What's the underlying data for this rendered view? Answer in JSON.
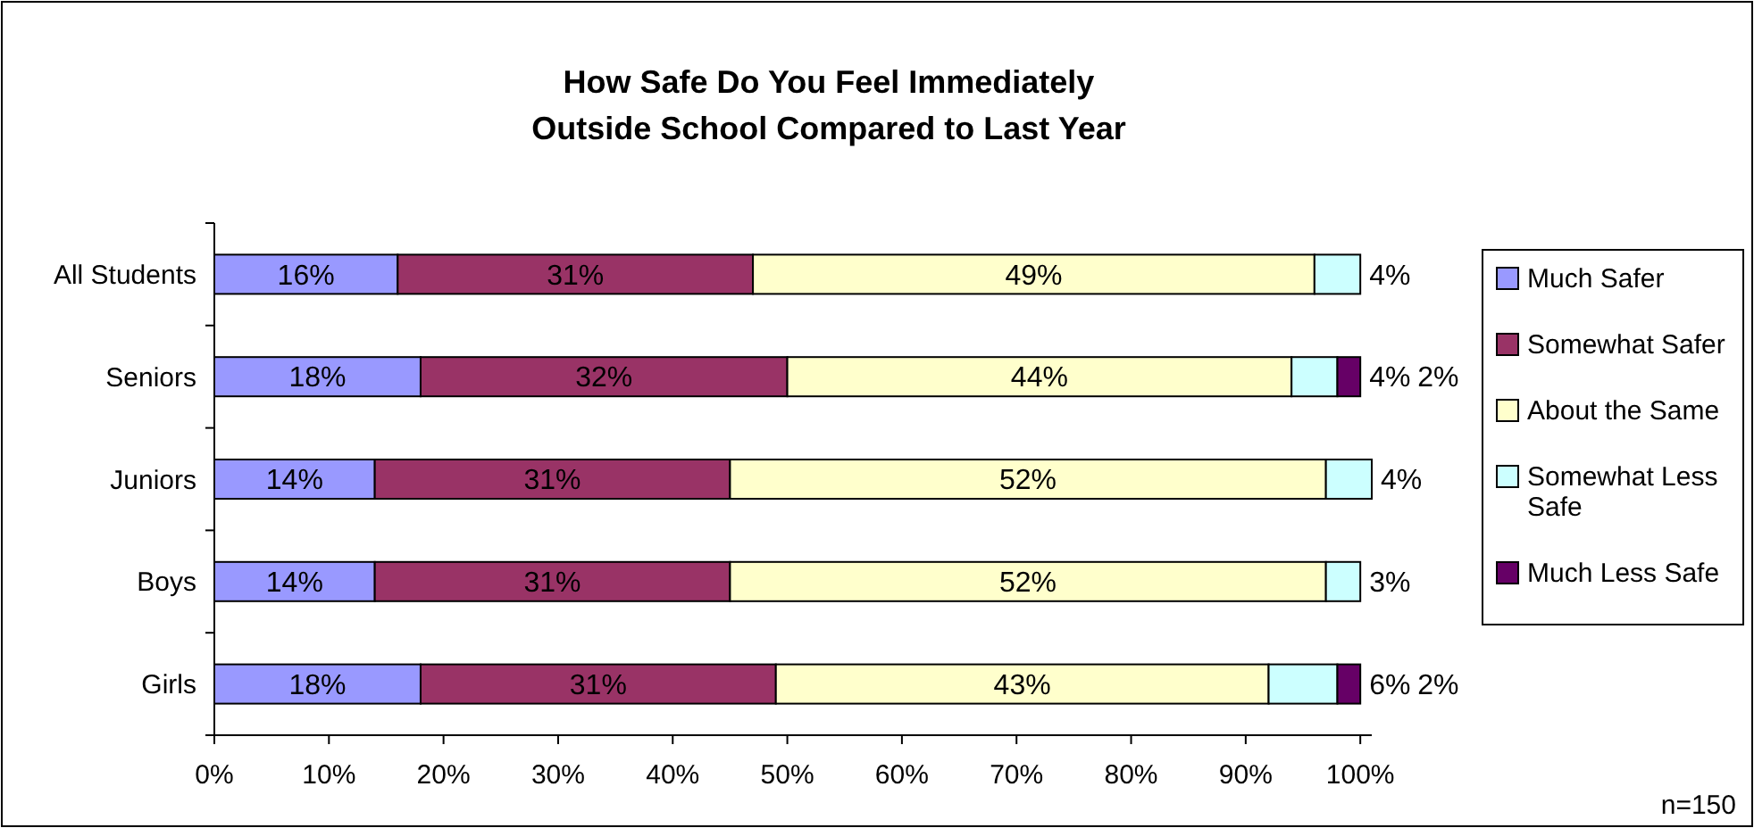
{
  "chart_data": {
    "type": "bar",
    "orientation": "horizontal",
    "stacked": true,
    "title": "How Safe Do You Feel Immediately\nOutside School Compared to Last Year",
    "categories": [
      "All Students",
      "Seniors",
      "Juniors",
      "Boys",
      "Girls"
    ],
    "series": [
      {
        "name": "Much Safer",
        "color": "#9999ff",
        "values": [
          16,
          18,
          14,
          14,
          18
        ],
        "value_labels": [
          "16%",
          "18%",
          "14%",
          "14%",
          "18%"
        ]
      },
      {
        "name": "Somewhat Safer",
        "color": "#993366",
        "values": [
          31,
          32,
          31,
          31,
          31
        ],
        "value_labels": [
          "31%",
          "32%",
          "31%",
          "31%",
          "31%"
        ]
      },
      {
        "name": "About the Same",
        "color": "#ffffcc",
        "values": [
          49,
          44,
          52,
          52,
          43
        ],
        "value_labels": [
          "49%",
          "44%",
          "52%",
          "52%",
          "43%"
        ]
      },
      {
        "name": "Somewhat Less Safe",
        "color": "#ccffff",
        "values": [
          4,
          4,
          4,
          3,
          6
        ],
        "value_labels": [
          "4%",
          "4%",
          "4%",
          "3%",
          "6%"
        ]
      },
      {
        "name": "Much Less Safe",
        "color": "#660066",
        "values": [
          0,
          2,
          0,
          0,
          2
        ],
        "value_labels": [
          null,
          "2%",
          null,
          null,
          "2%"
        ]
      }
    ],
    "xlim": [
      0,
      101
    ],
    "xticks": [
      {
        "value": 0,
        "label": "0%"
      },
      {
        "value": 10,
        "label": "10%"
      },
      {
        "value": 20,
        "label": "20%"
      },
      {
        "value": 30,
        "label": "30%"
      },
      {
        "value": 40,
        "label": "40%"
      },
      {
        "value": 50,
        "label": "50%"
      },
      {
        "value": 60,
        "label": "60%"
      },
      {
        "value": 70,
        "label": "70%"
      },
      {
        "value": 80,
        "label": "80%"
      },
      {
        "value": 90,
        "label": "90%"
      },
      {
        "value": 100,
        "label": "100%"
      }
    ],
    "legend": "right",
    "grid": false,
    "annotations": [
      "n=150"
    ]
  }
}
